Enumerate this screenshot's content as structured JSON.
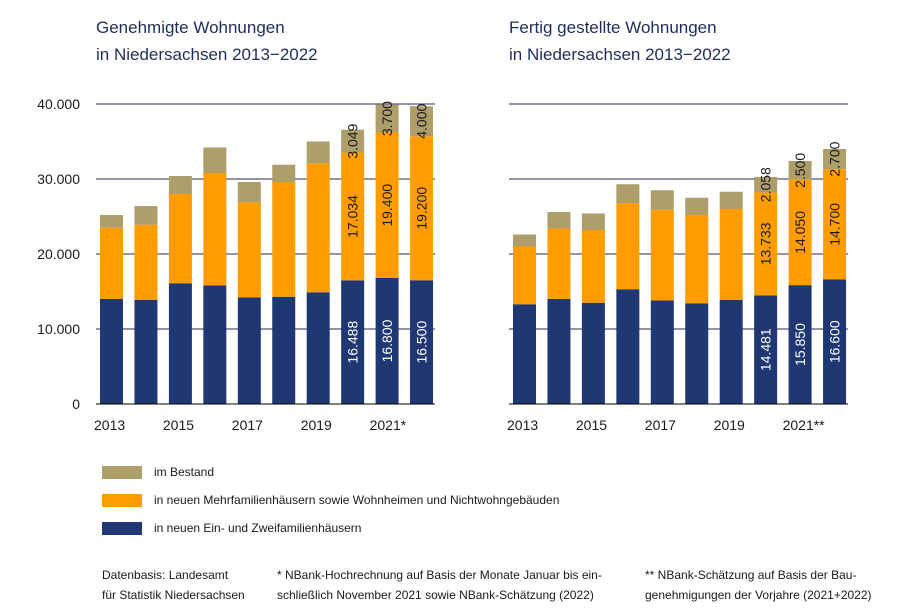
{
  "colors": {
    "ez": "#1f3773",
    "mfh": "#ff9d00",
    "bestand": "#ad9e6a",
    "grid": "#2a2a4a",
    "axis": "#000000"
  },
  "legend": [
    {
      "label": "im Bestand",
      "color_key": "bestand"
    },
    {
      "label": "in neuen Mehrfamilienhäusern sowie Wohnheimen und Nichtwohngebäuden",
      "color_key": "mfh"
    },
    {
      "label": "in neuen Ein- und Zweifamilienhäusern",
      "color_key": "ez"
    }
  ],
  "notes": {
    "source": "Datenbasis: Landesamt\nfür Statistik Niedersachsen",
    "footnote1": "* NBank-Hochrechnung auf Basis der Monate Januar bis ein-\n   schließlich November 2021 sowie NBank-Schätzung (2022)",
    "footnote2": "** NBank-Schätzung auf Basis der Bau-\n     genehmigungen der Vorjahre (2021+2022)"
  },
  "chart_data": [
    {
      "type": "bar",
      "stacked": true,
      "title": "Genehmigte Wohnungen\nin Niedersachsen 2013−2022",
      "categories": [
        "2013",
        "2014",
        "2015",
        "2016",
        "2017",
        "2018",
        "2019",
        "2020",
        "2021",
        "2022"
      ],
      "x_tick_labels": [
        "2013",
        "",
        "2015",
        "",
        "2017",
        "",
        "2019",
        "",
        "2021*",
        ""
      ],
      "y_tick_labels": [
        "0",
        "10.000",
        "20.000",
        "30.000",
        "40.000"
      ],
      "ylim": [
        0,
        40000
      ],
      "series": [
        {
          "name": "in neuen Ein- und Zweifamilienhäusern",
          "color_key": "ez",
          "values": [
            14000,
            13900,
            16100,
            15800,
            14200,
            14300,
            14900,
            16488,
            16800,
            16500
          ],
          "labels": [
            "",
            "",
            "",
            "",
            "",
            "",
            "",
            "16.488",
            "16.800",
            "16.500"
          ]
        },
        {
          "name": "in neuen Mehrfamilienhäusern sowie Wohnheimen und Nichtwohngebäuden",
          "color_key": "mfh",
          "values": [
            9500,
            10000,
            11900,
            15000,
            12700,
            15300,
            17200,
            17034,
            19400,
            19200
          ],
          "labels": [
            "",
            "",
            "",
            "",
            "",
            "",
            "",
            "17.034",
            "19.400",
            "19.200"
          ]
        },
        {
          "name": "im Bestand",
          "color_key": "bestand",
          "values": [
            1700,
            2500,
            2400,
            3400,
            2700,
            2300,
            2900,
            3049,
            3700,
            4000
          ],
          "labels": [
            "",
            "",
            "",
            "",
            "",
            "",
            "",
            "3.049",
            "3.700",
            "4.000"
          ]
        }
      ]
    },
    {
      "type": "bar",
      "stacked": true,
      "title": "Fertig gestellte Wohnungen\nin Niedersachsen 2013−2022",
      "categories": [
        "2013",
        "2014",
        "2015",
        "2016",
        "2017",
        "2018",
        "2019",
        "2020",
        "2021",
        "2022"
      ],
      "x_tick_labels": [
        "2013",
        "",
        "2015",
        "",
        "2017",
        "",
        "2019",
        "",
        "2021**",
        ""
      ],
      "y_tick_labels": [],
      "ylim": [
        0,
        40000
      ],
      "series": [
        {
          "name": "in neuen Ein- und Zweifamilienhäusern",
          "color_key": "ez",
          "values": [
            13300,
            14000,
            13500,
            15300,
            13800,
            13400,
            13900,
            14481,
            15850,
            16600
          ],
          "labels": [
            "",
            "",
            "",
            "",
            "",
            "",
            "",
            "14.481",
            "15.850",
            "16.600"
          ]
        },
        {
          "name": "in neuen Mehrfamilienhäusern sowie Wohnheimen und Nichtwohngebäuden",
          "color_key": "mfh",
          "values": [
            7700,
            9400,
            9700,
            11500,
            12100,
            11800,
            12100,
            13733,
            14050,
            14700
          ],
          "labels": [
            "",
            "",
            "",
            "",
            "",
            "",
            "",
            "13.733",
            "14.050",
            "14.700"
          ]
        },
        {
          "name": "im Bestand",
          "color_key": "bestand",
          "values": [
            1600,
            2200,
            2200,
            2500,
            2600,
            2300,
            2300,
            2058,
            2500,
            2700
          ],
          "labels": [
            "",
            "",
            "",
            "",
            "",
            "",
            "",
            "2.058",
            "2.500",
            "2.700"
          ]
        }
      ]
    }
  ]
}
